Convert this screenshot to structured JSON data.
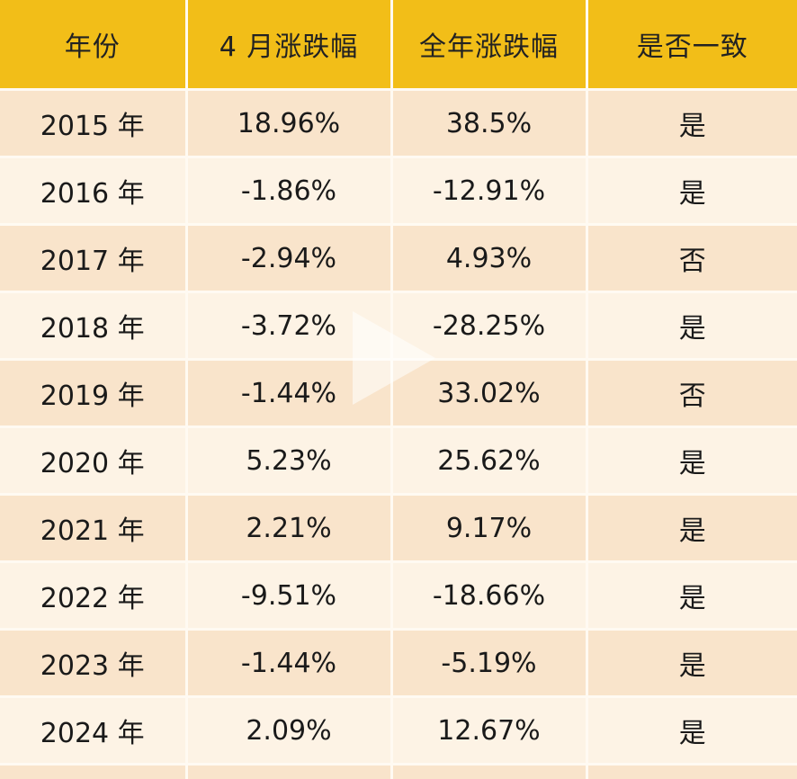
{
  "table": {
    "headers": [
      "年份",
      "4 月涨跌幅",
      "全年涨跌幅",
      "是否一致"
    ],
    "rows": [
      [
        "2015 年",
        "18.96%",
        "38.5%",
        "是"
      ],
      [
        "2016 年",
        "-1.86%",
        "-12.91%",
        "是"
      ],
      [
        "2017 年",
        "-2.94%",
        "4.93%",
        "否"
      ],
      [
        "2018 年",
        "-3.72%",
        "-28.25%",
        "是"
      ],
      [
        "2019 年",
        "-1.44%",
        "33.02%",
        "否"
      ],
      [
        "2020 年",
        "5.23%",
        "25.62%",
        "是"
      ],
      [
        "2021 年",
        "2.21%",
        "9.17%",
        "是"
      ],
      [
        "2022 年",
        "-9.51%",
        "-18.66%",
        "是"
      ],
      [
        "2023 年",
        "-1.44%",
        "-5.19%",
        "是"
      ],
      [
        "2024 年",
        "2.09%",
        "12.67%",
        "是"
      ]
    ]
  },
  "overlay": {
    "icon": "play-icon"
  },
  "colors": {
    "header_bg": "#f2be18",
    "row_odd_bg": "#f9e4cb",
    "row_even_bg": "#fdf3e5"
  }
}
